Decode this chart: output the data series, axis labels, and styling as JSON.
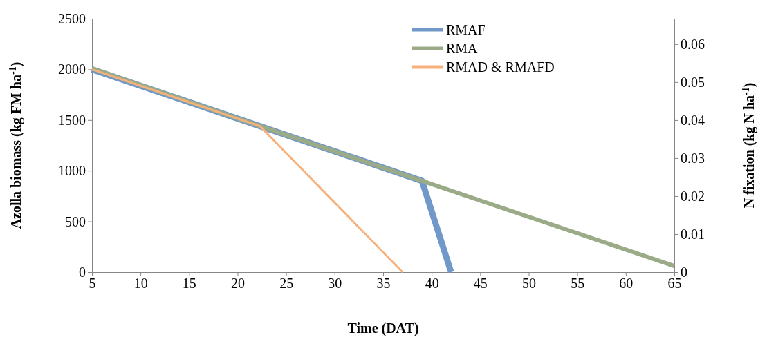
{
  "chart_data": {
    "type": "line",
    "xlabel": "Time (DAT)",
    "ylabel": "Azolla biomass (kg FM ha$^{-1}$)",
    "y2label": "N fixation (kg N ha$^{-1}$)",
    "xlim": [
      5,
      65
    ],
    "xticks": [
      5,
      10,
      15,
      20,
      25,
      30,
      35,
      40,
      45,
      50,
      55,
      60,
      65
    ],
    "ylim": [
      0,
      2500
    ],
    "yticks": [
      0,
      500,
      1000,
      1500,
      2000,
      2500
    ],
    "y2lim": [
      0,
      0.0667
    ],
    "y2ticks": [
      0,
      0.01,
      0.02,
      0.03,
      0.04,
      0.05,
      0.06
    ],
    "legend": "top",
    "grid": false,
    "line_style": "solid",
    "marker": "none",
    "series": [
      {
        "name": "RMAF",
        "color": "#7099c9",
        "x": [
          5,
          22,
          39,
          42
        ],
        "values": [
          2000,
          1450,
          900,
          0
        ]
      },
      {
        "name": "RMA",
        "color": "#9bab87",
        "x": [
          5,
          22,
          39,
          65
        ],
        "values": [
          2010,
          1450,
          900,
          60
        ]
      },
      {
        "name": "RMAD & RMAFD",
        "color": "#f6b17c",
        "x": [
          5,
          22.3,
          37
        ],
        "values": [
          2000,
          1440,
          0
        ]
      }
    ]
  }
}
